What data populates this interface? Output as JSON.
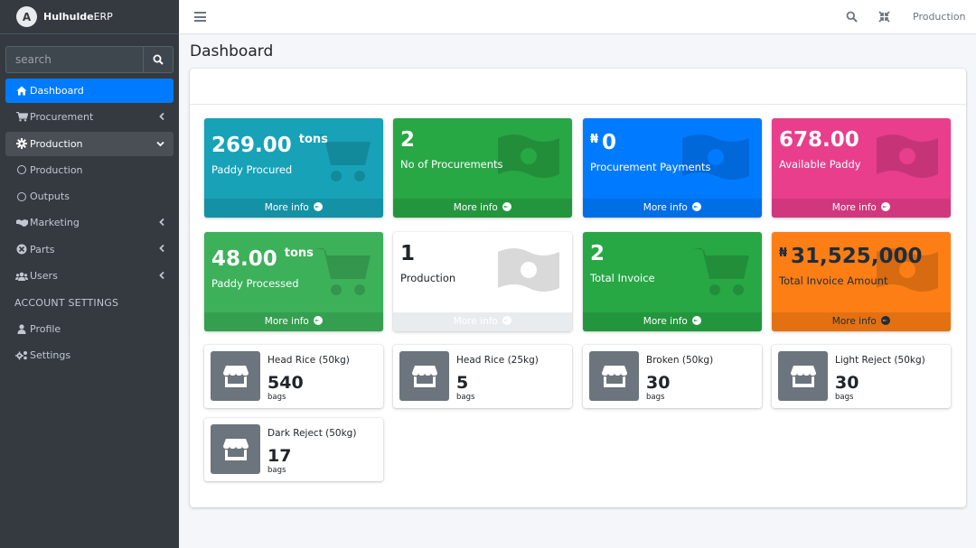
{
  "brand": {
    "logo_letter": "A",
    "name_bold": "Hulhulde",
    "name_rest": "ERP"
  },
  "search": {
    "placeholder": "search"
  },
  "sidebar": {
    "items": [
      {
        "label": "Dashboard",
        "icon": "home-icon",
        "state": "active"
      },
      {
        "label": "Procurement",
        "icon": "cart-icon",
        "chevron": "left"
      },
      {
        "label": "Production",
        "icon": "cog-icon",
        "chevron": "down",
        "state": "open"
      },
      {
        "label": "Production",
        "icon": "circle-icon",
        "sub": true
      },
      {
        "label": "Outputs",
        "icon": "circle-icon",
        "sub": true
      },
      {
        "label": "Marketing",
        "icon": "handshake-icon",
        "chevron": "left"
      },
      {
        "label": "Parts",
        "icon": "cogs-icon",
        "chevron": "left"
      },
      {
        "label": "Users",
        "icon": "users-icon",
        "chevron": "left"
      }
    ],
    "header": "ACCOUNT SETTINGS",
    "settings_items": [
      {
        "label": "Profile",
        "icon": "user-icon"
      },
      {
        "label": "Settings",
        "icon": "cogs-icon"
      }
    ]
  },
  "topbar": {
    "user_label": "Production"
  },
  "page": {
    "title": "Dashboard"
  },
  "stat_boxes": [
    {
      "prefix": "",
      "value": "269.00",
      "unit": "tons",
      "label": "Paddy Procured",
      "footer": "More info",
      "color": "#17a2b8",
      "icon": "cart-icon"
    },
    {
      "prefix": "",
      "value": "2",
      "unit": "",
      "label": "No of Procurements",
      "footer": "More info",
      "color": "#28a745",
      "icon": "money-icon"
    },
    {
      "prefix": "₦",
      "value": "0",
      "unit": "",
      "label": "Procurement Payments",
      "footer": "More info",
      "color": "#007bff",
      "icon": "money-icon"
    },
    {
      "prefix": "",
      "value": "678.00",
      "unit": "",
      "label": "Available Paddy",
      "footer": "More info",
      "color": "#e83e8c",
      "icon": "money-icon"
    },
    {
      "prefix": "",
      "value": "48.00",
      "unit": "tons",
      "label": "Paddy Processed",
      "footer": "More info",
      "color": "#3cb15a",
      "icon": "cart-icon"
    },
    {
      "prefix": "",
      "value": "1",
      "unit": "",
      "label": "Production",
      "footer": "More info",
      "color": "#ffffff",
      "icon": "money-icon"
    },
    {
      "prefix": "",
      "value": "2",
      "unit": "",
      "label": "Total Invoice",
      "footer": "More info",
      "color": "#28a745",
      "icon": "cart-icon"
    },
    {
      "prefix": "₦",
      "value": "31,525,000",
      "unit": "",
      "label": "Total Invoice Amount",
      "footer": "More info",
      "color": "#fd7e14",
      "icon": "money-icon"
    }
  ],
  "info_boxes": [
    {
      "title": "Head Rice (50kg)",
      "value": "540",
      "unit": "bags",
      "icon": "store-icon"
    },
    {
      "title": "Head Rice (25kg)",
      "value": "5",
      "unit": "bags",
      "icon": "store-icon"
    },
    {
      "title": "Broken (50kg)",
      "value": "30",
      "unit": "bags",
      "icon": "store-icon"
    },
    {
      "title": "Light Reject (50kg)",
      "value": "30",
      "unit": "bags",
      "icon": "store-icon"
    },
    {
      "title": "Dark Reject (50kg)",
      "value": "17",
      "unit": "bags",
      "icon": "store-icon"
    }
  ]
}
